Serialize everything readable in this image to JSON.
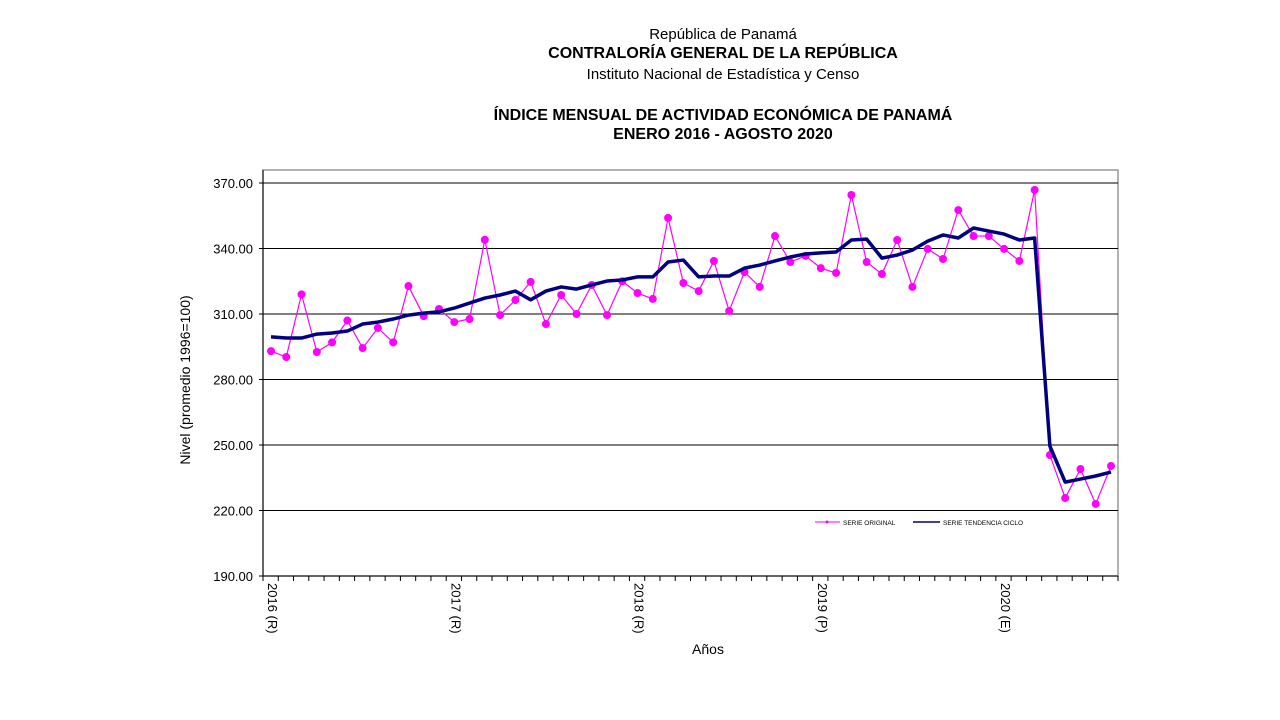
{
  "header": {
    "line1": "República de Panamá",
    "line2": "CONTRALORÍA GENERAL DE LA REPÚBLICA",
    "line3": "Instituto  Nacional de Estadística y Censo"
  },
  "chart_data": {
    "type": "line",
    "title": "ÍNDICE MENSUAL DE ACTIVIDAD ECONÓMICA DE PANAMÁ",
    "subtitle": "ENERO 2016 -  AGOSTO  2020",
    "xlabel": "Años",
    "ylabel": "Nivel (promedio 1996=100)",
    "ylim": [
      190,
      370
    ],
    "yticks": [
      "190.00",
      "220.00",
      "250.00",
      "280.00",
      "310.00",
      "340.00",
      "370.00"
    ],
    "xtick_labels": [
      "2016 (R)",
      "2017 (R)",
      "2018 (R)",
      "2019 (P)",
      "2020 (E)"
    ],
    "x_start": "2016-01",
    "n_months": 56,
    "grid": true,
    "legend_position": "bottom-right",
    "series": [
      {
        "name": "SERIE ORIGINAL",
        "color": "#ff00ff",
        "values": [
          293,
          290.3,
          319,
          292.6,
          297,
          307,
          294.4,
          303.6,
          297,
          322.8,
          309,
          312.3,
          306.3,
          307.7,
          344,
          309.5,
          316.4,
          324.7,
          305.4,
          318.7,
          310,
          323.3,
          309.5,
          325,
          319.6,
          316.9,
          354,
          324.2,
          320.5,
          334.3,
          311.4,
          329.2,
          322.4,
          345.7,
          333.8,
          336.6,
          331,
          328.8,
          364.5,
          333.8,
          328.3,
          343.9,
          322.4,
          339.8,
          335.2,
          357.6,
          345.7,
          345.7,
          339.8,
          334.3,
          366.8,
          245.4,
          225.7,
          239,
          223,
          240.4
        ]
      },
      {
        "name": "SERIE TENDENCIA CICLO",
        "color": "#000080",
        "values": [
          299.5,
          299,
          299,
          300.8,
          301.3,
          302.2,
          305.4,
          306.3,
          307.7,
          309.5,
          310.4,
          311,
          312.7,
          315,
          317.3,
          318.7,
          320.5,
          316.5,
          320.5,
          322.4,
          321.4,
          323.3,
          325.1,
          325.6,
          327,
          327,
          333.8,
          334.7,
          327,
          327.4,
          327.4,
          331,
          332.4,
          334.3,
          336.1,
          337.5,
          338,
          338.4,
          343.9,
          344.3,
          335.6,
          337,
          339.3,
          343.4,
          346.2,
          344.8,
          349.4,
          348,
          346.6,
          343.9,
          344.8,
          249.5,
          233,
          234.4,
          235.8,
          237.6
        ]
      }
    ]
  }
}
